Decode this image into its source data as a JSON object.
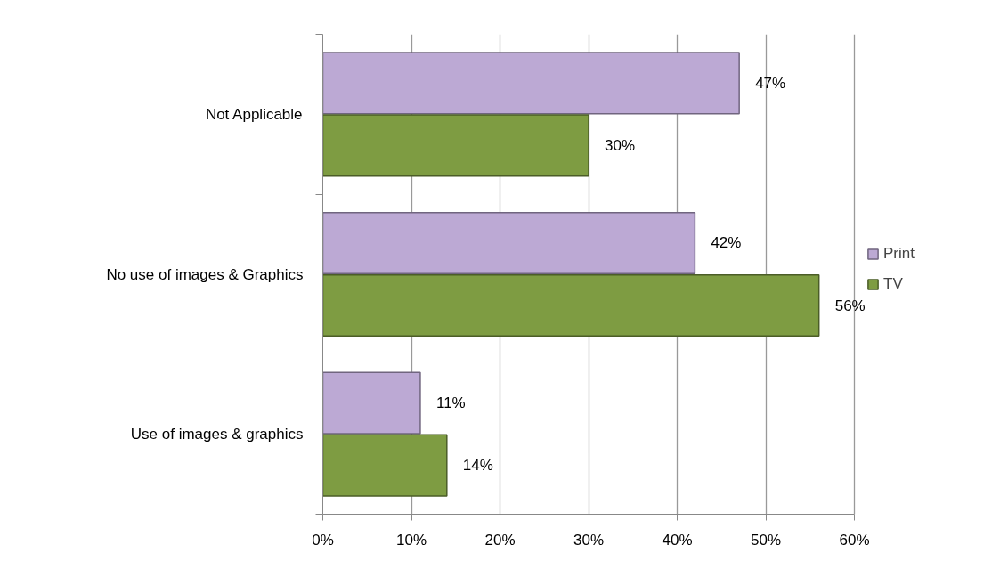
{
  "chart_data": {
    "type": "bar",
    "orientation": "horizontal",
    "categories": [
      "Not Applicable",
      "No use of images & Graphics",
      "Use of images & graphics"
    ],
    "series": [
      {
        "name": "Print",
        "color": "#bca9d4",
        "values": [
          47,
          42,
          11
        ],
        "value_labels": [
          "47%",
          "42%",
          "11%"
        ]
      },
      {
        "name": "TV",
        "color": "#7e9c42",
        "values": [
          30,
          56,
          14
        ],
        "value_labels": [
          "30%",
          "56%",
          "14%"
        ]
      }
    ],
    "xlim": [
      0,
      60
    ],
    "xticks": [
      {
        "value": 0,
        "label": "0%"
      },
      {
        "value": 10,
        "label": "10%"
      },
      {
        "value": 20,
        "label": "20%"
      },
      {
        "value": 30,
        "label": "30%"
      },
      {
        "value": 40,
        "label": "40%"
      },
      {
        "value": 50,
        "label": "50%"
      },
      {
        "value": 60,
        "label": "60%"
      }
    ],
    "grid": "x",
    "legend": "right"
  }
}
